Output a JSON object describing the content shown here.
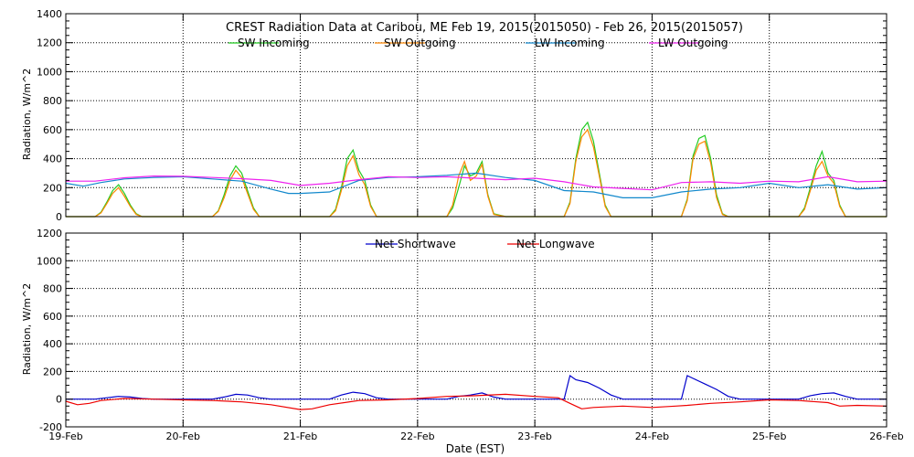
{
  "chart_data": [
    {
      "type": "line",
      "title": "CREST Radiation Data at Caribou, ME   Feb 19, 2015(2015050) - Feb 26, 2015(2015057)",
      "xlabel": "",
      "ylabel": "Radiation, W/m^2",
      "ylim": [
        0,
        1400
      ],
      "yticks": [
        0,
        200,
        400,
        600,
        800,
        1000,
        1200,
        1400
      ],
      "xlim": [
        0,
        7
      ],
      "grid": true,
      "legend": "top",
      "series": [
        {
          "name": "SW Incoming",
          "color": "#22cc22",
          "x": [
            0.0,
            0.25,
            0.3,
            0.35,
            0.4,
            0.45,
            0.5,
            0.55,
            0.6,
            0.65,
            0.75,
            1.0,
            1.25,
            1.3,
            1.35,
            1.4,
            1.45,
            1.5,
            1.55,
            1.6,
            1.65,
            1.75,
            2.0,
            2.25,
            2.3,
            2.35,
            2.4,
            2.45,
            2.5,
            2.55,
            2.6,
            2.65,
            2.75,
            3.0,
            3.25,
            3.3,
            3.35,
            3.4,
            3.45,
            3.5,
            3.55,
            3.6,
            3.65,
            3.75,
            4.0,
            4.25,
            4.3,
            4.35,
            4.4,
            4.45,
            4.5,
            4.55,
            4.6,
            4.65,
            4.75,
            5.0,
            5.25,
            5.3,
            5.35,
            5.4,
            5.45,
            5.5,
            5.55,
            5.6,
            5.65,
            5.75,
            6.0,
            6.25,
            6.3,
            6.35,
            6.4,
            6.45,
            6.5,
            6.55,
            6.6,
            6.65,
            6.75,
            7.0
          ],
          "y": [
            0,
            0,
            30,
            100,
            180,
            220,
            160,
            80,
            20,
            0,
            0,
            0,
            0,
            40,
            150,
            280,
            350,
            300,
            180,
            60,
            0,
            0,
            0,
            0,
            50,
            200,
            400,
            460,
            320,
            250,
            80,
            0,
            0,
            0,
            0,
            60,
            200,
            350,
            280,
            300,
            380,
            150,
            20,
            0,
            0,
            0,
            100,
            400,
            600,
            650,
            520,
            300,
            80,
            0,
            0,
            0,
            0,
            120,
            420,
            540,
            560,
            400,
            150,
            20,
            0,
            0,
            0,
            0,
            60,
            200,
            350,
            450,
            300,
            250,
            80,
            0,
            0,
            0
          ]
        },
        {
          "name": "SW Outgoing",
          "color": "#ff8800",
          "x": [
            0.0,
            0.25,
            0.3,
            0.35,
            0.4,
            0.45,
            0.5,
            0.55,
            0.6,
            0.65,
            0.75,
            1.0,
            1.25,
            1.3,
            1.35,
            1.4,
            1.45,
            1.5,
            1.55,
            1.6,
            1.65,
            1.75,
            2.0,
            2.25,
            2.3,
            2.35,
            2.4,
            2.45,
            2.5,
            2.55,
            2.6,
            2.65,
            2.75,
            3.0,
            3.25,
            3.3,
            3.35,
            3.4,
            3.45,
            3.5,
            3.55,
            3.6,
            3.65,
            3.75,
            4.0,
            4.25,
            4.3,
            4.35,
            4.4,
            4.45,
            4.5,
            4.55,
            4.6,
            4.65,
            4.75,
            5.0,
            5.25,
            5.3,
            5.35,
            5.4,
            5.45,
            5.5,
            5.55,
            5.6,
            5.65,
            5.75,
            6.0,
            6.25,
            6.3,
            6.35,
            6.4,
            6.45,
            6.5,
            6.55,
            6.6,
            6.65,
            6.75,
            7.0
          ],
          "y": [
            0,
            0,
            25,
            90,
            160,
            200,
            140,
            70,
            15,
            0,
            0,
            0,
            0,
            35,
            130,
            250,
            320,
            270,
            160,
            50,
            0,
            0,
            0,
            0,
            40,
            180,
            350,
            420,
            290,
            220,
            70,
            0,
            0,
            0,
            0,
            80,
            280,
            380,
            250,
            280,
            360,
            140,
            15,
            0,
            0,
            0,
            90,
            380,
            550,
            600,
            480,
            280,
            70,
            0,
            0,
            0,
            0,
            110,
            400,
            500,
            520,
            370,
            130,
            15,
            0,
            0,
            0,
            0,
            50,
            180,
            320,
            380,
            280,
            230,
            70,
            0,
            0,
            0
          ]
        },
        {
          "name": "LW Incoming",
          "color": "#1188cc",
          "x": [
            0.0,
            0.15,
            0.3,
            0.5,
            0.75,
            1.0,
            1.25,
            1.5,
            1.75,
            1.9,
            2.0,
            2.25,
            2.5,
            2.75,
            3.0,
            3.25,
            3.5,
            3.75,
            4.0,
            4.25,
            4.5,
            4.75,
            5.0,
            5.25,
            5.5,
            5.75,
            6.0,
            6.25,
            6.5,
            6.75,
            7.0
          ],
          "y": [
            230,
            210,
            235,
            260,
            270,
            275,
            260,
            245,
            190,
            160,
            160,
            170,
            250,
            270,
            275,
            285,
            300,
            270,
            250,
            180,
            170,
            130,
            130,
            170,
            190,
            200,
            230,
            200,
            220,
            190,
            200
          ]
        },
        {
          "name": "LW Outgoing",
          "color": "#ee22ee",
          "x": [
            0.0,
            0.25,
            0.5,
            0.75,
            1.0,
            1.25,
            1.5,
            1.75,
            2.0,
            2.25,
            2.5,
            2.75,
            3.0,
            3.25,
            3.5,
            3.75,
            4.0,
            4.25,
            4.5,
            4.75,
            5.0,
            5.25,
            5.5,
            5.75,
            6.0,
            6.25,
            6.5,
            6.75,
            7.0
          ],
          "y": [
            245,
            245,
            268,
            280,
            278,
            270,
            262,
            250,
            215,
            230,
            255,
            275,
            270,
            275,
            265,
            255,
            265,
            240,
            205,
            195,
            185,
            235,
            240,
            230,
            245,
            240,
            275,
            240,
            245
          ]
        }
      ]
    },
    {
      "type": "line",
      "title": "",
      "xlabel": "Date (EST)",
      "ylabel": "Radiation, W/m^2",
      "ylim": [
        -200,
        1200
      ],
      "yticks": [
        -200,
        0,
        200,
        400,
        600,
        800,
        1000,
        1200
      ],
      "xlim": [
        0,
        7
      ],
      "categories": [
        "19-Feb",
        "20-Feb",
        "21-Feb",
        "22-Feb",
        "23-Feb",
        "24-Feb",
        "25-Feb",
        "26-Feb"
      ],
      "grid": true,
      "legend": "top",
      "series": [
        {
          "name": "Net Shortwave",
          "color": "#0000cc",
          "x": [
            0.0,
            0.25,
            0.35,
            0.45,
            0.55,
            0.65,
            0.75,
            1.0,
            1.25,
            1.35,
            1.45,
            1.55,
            1.65,
            1.75,
            2.0,
            2.25,
            2.35,
            2.45,
            2.55,
            2.65,
            2.75,
            3.0,
            3.25,
            3.35,
            3.45,
            3.55,
            3.65,
            3.75,
            4.0,
            4.25,
            4.3,
            4.35,
            4.45,
            4.55,
            4.65,
            4.75,
            5.0,
            5.25,
            5.3,
            5.35,
            5.45,
            5.55,
            5.65,
            5.75,
            6.0,
            6.25,
            6.35,
            6.45,
            6.55,
            6.65,
            6.75,
            7.0
          ],
          "y": [
            0,
            0,
            10,
            20,
            15,
            5,
            0,
            0,
            0,
            15,
            35,
            30,
            10,
            0,
            0,
            0,
            30,
            50,
            40,
            10,
            0,
            0,
            0,
            20,
            30,
            45,
            15,
            0,
            0,
            0,
            170,
            140,
            120,
            80,
            30,
            0,
            0,
            0,
            170,
            150,
            110,
            70,
            20,
            0,
            0,
            0,
            25,
            40,
            45,
            20,
            0,
            0
          ]
        },
        {
          "name": "Net Longwave",
          "color": "#ee0000",
          "x": [
            0.0,
            0.1,
            0.2,
            0.3,
            0.5,
            0.75,
            1.0,
            1.25,
            1.5,
            1.75,
            2.0,
            2.1,
            2.25,
            2.5,
            2.75,
            3.0,
            3.25,
            3.5,
            3.75,
            4.0,
            4.2,
            4.3,
            4.4,
            4.5,
            4.75,
            5.0,
            5.2,
            5.3,
            5.5,
            5.75,
            6.0,
            6.25,
            6.5,
            6.6,
            6.75,
            7.0
          ],
          "y": [
            -15,
            -40,
            -30,
            -10,
            5,
            0,
            -5,
            -10,
            -20,
            -40,
            -75,
            -70,
            -40,
            -10,
            -5,
            5,
            20,
            25,
            35,
            20,
            10,
            -30,
            -70,
            -60,
            -50,
            -60,
            -50,
            -45,
            -30,
            -20,
            -5,
            -10,
            -25,
            -50,
            -45,
            -50
          ]
        }
      ]
    }
  ]
}
